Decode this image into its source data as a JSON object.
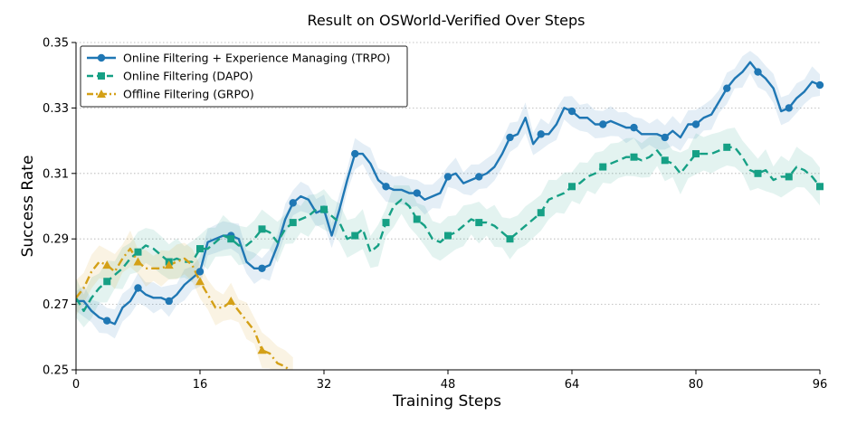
{
  "chart_data": {
    "type": "line",
    "title": "Result on OSWorld-Verified Over Steps",
    "xlabel": "Training Steps",
    "ylabel": "Success Rate",
    "xlim": [
      0,
      96
    ],
    "ylim": [
      0.25,
      0.35
    ],
    "xticks": [
      "0",
      "16",
      "32",
      "48",
      "64",
      "80",
      "96"
    ],
    "yticks": [
      "0.25",
      "0.27",
      "0.29",
      "0.31",
      "0.33",
      "0.35"
    ],
    "grid": "horizontal dotted",
    "legend_position": "top-left",
    "series": [
      {
        "name": "Online Filtering + Experience Managing (TRPO)",
        "color": "#1f77b4",
        "marker": "circle",
        "dash": "solid",
        "x": [
          0,
          1,
          2,
          3,
          4,
          5,
          6,
          7,
          8,
          9,
          10,
          11,
          12,
          13,
          14,
          15,
          16,
          17,
          18,
          19,
          20,
          21,
          22,
          23,
          24,
          25,
          26,
          27,
          28,
          29,
          30,
          31,
          32,
          33,
          34,
          35,
          36,
          37,
          38,
          39,
          40,
          41,
          42,
          43,
          44,
          45,
          46,
          47,
          48,
          49,
          50,
          51,
          52,
          53,
          54,
          55,
          56,
          57,
          58,
          59,
          60,
          61,
          62,
          63,
          64,
          65,
          66,
          67,
          68,
          69,
          70,
          71,
          72,
          73,
          74,
          75,
          76,
          77,
          78,
          79,
          80,
          81,
          82,
          83,
          84,
          85,
          86,
          87,
          88,
          89,
          90,
          91,
          92,
          93,
          94,
          95,
          96
        ],
        "y": [
          0.271,
          0.271,
          0.268,
          0.266,
          0.265,
          0.264,
          0.269,
          0.271,
          0.275,
          0.273,
          0.272,
          0.272,
          0.271,
          0.273,
          0.276,
          0.278,
          0.28,
          0.289,
          0.29,
          0.291,
          0.291,
          0.29,
          0.283,
          0.281,
          0.281,
          0.282,
          0.288,
          0.296,
          0.301,
          0.303,
          0.302,
          0.298,
          0.299,
          0.291,
          0.299,
          0.308,
          0.316,
          0.316,
          0.313,
          0.308,
          0.306,
          0.305,
          0.305,
          0.304,
          0.304,
          0.302,
          0.303,
          0.304,
          0.309,
          0.31,
          0.307,
          0.308,
          0.309,
          0.31,
          0.312,
          0.316,
          0.321,
          0.322,
          0.327,
          0.319,
          0.322,
          0.322,
          0.325,
          0.33,
          0.329,
          0.327,
          0.327,
          0.325,
          0.325,
          0.326,
          0.325,
          0.324,
          0.324,
          0.322,
          0.322,
          0.322,
          0.321,
          0.323,
          0.321,
          0.325,
          0.325,
          0.327,
          0.328,
          0.332,
          0.336,
          0.339,
          0.341,
          0.344,
          0.341,
          0.339,
          0.336,
          0.329,
          0.33,
          0.333,
          0.335,
          0.338,
          0.337
        ]
      },
      {
        "name": "Online Filtering (DAPO)",
        "color": "#16a085",
        "marker": "square",
        "dash": "dashed",
        "x": [
          0,
          1,
          2,
          3,
          4,
          5,
          6,
          7,
          8,
          9,
          10,
          11,
          12,
          13,
          14,
          15,
          16,
          17,
          18,
          19,
          20,
          21,
          22,
          23,
          24,
          25,
          26,
          27,
          28,
          29,
          30,
          31,
          32,
          33,
          34,
          35,
          36,
          37,
          38,
          39,
          40,
          41,
          42,
          43,
          44,
          45,
          46,
          47,
          48,
          49,
          50,
          51,
          52,
          53,
          54,
          55,
          56,
          57,
          58,
          59,
          60,
          61,
          62,
          63,
          64,
          65,
          66,
          67,
          68,
          69,
          70,
          71,
          72,
          73,
          74,
          75,
          76,
          77,
          78,
          79,
          80,
          81,
          82,
          83,
          84,
          85,
          86,
          87,
          88,
          89,
          90,
          91,
          92,
          93,
          94,
          95,
          96
        ],
        "y": [
          0.272,
          0.268,
          0.272,
          0.275,
          0.277,
          0.279,
          0.281,
          0.284,
          0.286,
          0.288,
          0.287,
          0.285,
          0.283,
          0.284,
          0.283,
          0.283,
          0.287,
          0.287,
          0.289,
          0.291,
          0.29,
          0.288,
          0.288,
          0.29,
          0.293,
          0.292,
          0.289,
          0.293,
          0.295,
          0.296,
          0.297,
          0.299,
          0.299,
          0.297,
          0.295,
          0.29,
          0.291,
          0.293,
          0.286,
          0.288,
          0.295,
          0.3,
          0.302,
          0.3,
          0.296,
          0.294,
          0.29,
          0.289,
          0.291,
          0.292,
          0.294,
          0.296,
          0.295,
          0.295,
          0.294,
          0.292,
          0.29,
          0.292,
          0.294,
          0.296,
          0.298,
          0.302,
          0.303,
          0.304,
          0.306,
          0.307,
          0.309,
          0.31,
          0.312,
          0.313,
          0.314,
          0.315,
          0.315,
          0.314,
          0.315,
          0.317,
          0.314,
          0.313,
          0.31,
          0.313,
          0.316,
          0.316,
          0.316,
          0.317,
          0.318,
          0.318,
          0.315,
          0.311,
          0.31,
          0.311,
          0.308,
          0.309,
          0.309,
          0.312,
          0.311,
          0.309,
          0.306
        ]
      },
      {
        "name": "Offline Filtering (GRPO)",
        "color": "#d4a017",
        "marker": "triangle",
        "dash": "dashdot",
        "x": [
          0,
          1,
          2,
          3,
          4,
          5,
          6,
          7,
          8,
          9,
          10,
          11,
          12,
          13,
          14,
          15,
          16,
          17,
          18,
          19,
          20,
          21,
          22,
          23,
          24,
          25,
          26,
          27,
          28
        ],
        "y": [
          0.272,
          0.275,
          0.28,
          0.283,
          0.282,
          0.28,
          0.284,
          0.287,
          0.283,
          0.281,
          0.281,
          0.281,
          0.282,
          0.283,
          0.284,
          0.282,
          0.277,
          0.273,
          0.269,
          0.269,
          0.271,
          0.268,
          0.265,
          0.262,
          0.256,
          0.255,
          0.252,
          0.251,
          0.249
        ]
      }
    ]
  }
}
